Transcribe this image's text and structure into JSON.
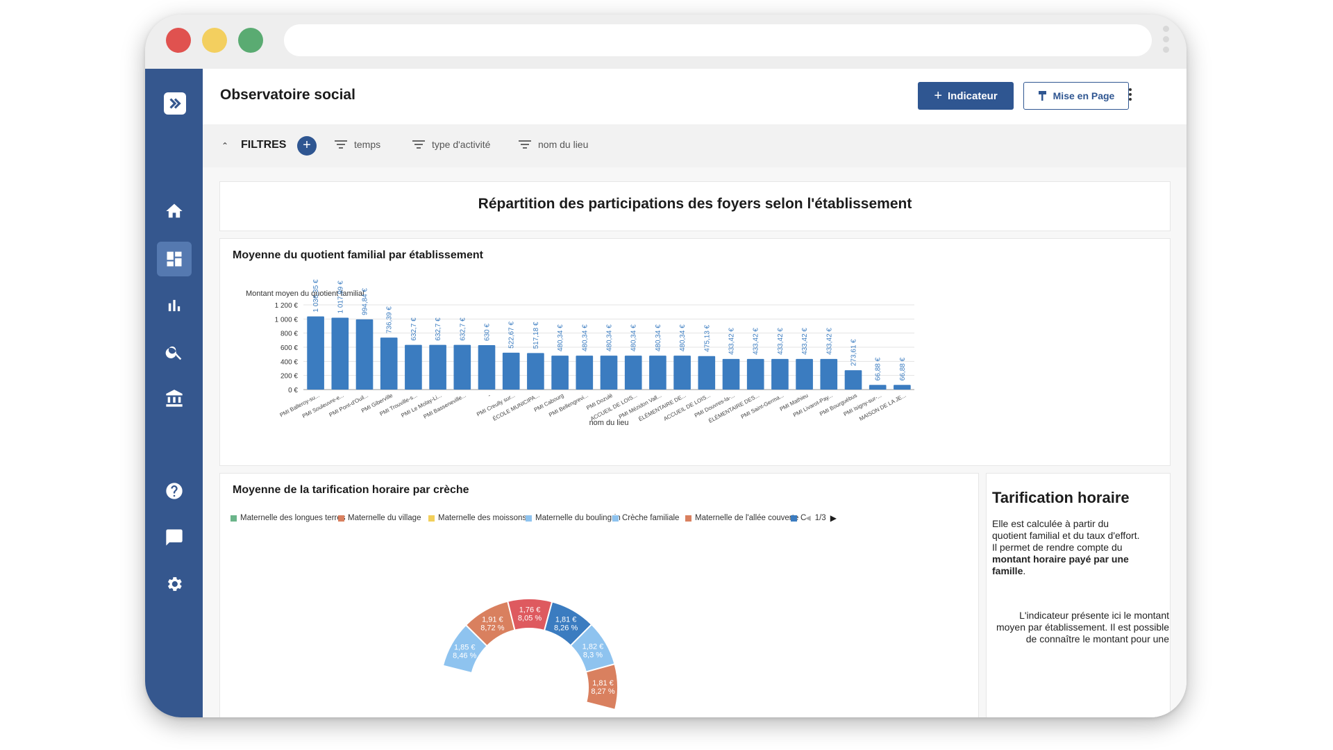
{
  "app": {
    "title": "Observatoire social",
    "add_indicator_label": "Indicateur",
    "layout_label": "Mise en Page"
  },
  "sidebar": {
    "items": [
      {
        "icon": "logo-icon"
      },
      {
        "icon": "home-icon"
      },
      {
        "icon": "dashboard-icon",
        "active": true
      },
      {
        "icon": "bar-chart-icon"
      },
      {
        "icon": "search-icon"
      },
      {
        "icon": "institution-icon"
      },
      {
        "icon": "help-icon"
      },
      {
        "icon": "chat-icon"
      },
      {
        "icon": "settings-icon"
      }
    ]
  },
  "filters": {
    "label": "FILTRES",
    "chips": [
      "temps",
      "type d'activité",
      "nom du lieu"
    ]
  },
  "section": {
    "title": "Répartition des participations des foyers selon l'établissement"
  },
  "bar_card": {
    "title": "Moyenne du quotient familial par établissement"
  },
  "pie_card": {
    "title": "Moyenne de la tarification horaire par crèche",
    "legend": [
      {
        "label": "Maternelle des longues terres",
        "color": "#6bb58a"
      },
      {
        "label": "Maternelle du village",
        "color": "#d9805f"
      },
      {
        "label": "Maternelle des moissons",
        "color": "#f2cf5a"
      },
      {
        "label": "Maternelle du boulingrin",
        "color": "#8ec3ef"
      },
      {
        "label": "Crèche familiale",
        "color": "#8ec3ef"
      },
      {
        "label": "Maternelle de l'allée couverte",
        "color": "#d9805f"
      },
      {
        "label": "C",
        "color": "#3b7cc0"
      }
    ],
    "legend_page": "1/3"
  },
  "info_card": {
    "title": "Tarification horaire",
    "p1_text": "Elle est calculée à partir du quotient familial et du taux d'effort. Il permet de rendre compte du ",
    "p1_bold": "montant horaire payé par une famille",
    "p1_end": ".",
    "p2": "L'indicateur présente ici le montant moyen par établissement. Il est possible de connaître le montant pour une"
  },
  "chart_data": [
    {
      "type": "bar",
      "title": "Moyenne du quotient familial par établissement",
      "xlabel": "nom du lieu",
      "ylabel": "Montant moyen du quotient familial",
      "ylim": [
        0,
        1200
      ],
      "yticks": [
        "0 €",
        "200 €",
        "400 €",
        "600 €",
        "800 €",
        "1 000 €",
        "1 200 €"
      ],
      "grid": true,
      "categories": [
        "PMI Balleroy-su...",
        "PMI Souleuvre-e...",
        "PMI Pont-d'Ouil...",
        "PMI Giberville",
        "PMI Trouville-s...",
        "PMI Le Molay-Li...",
        "PMI Basseneville...",
        "-",
        "PMI Creully sur...",
        "ÉCOLE MUNICIPA...",
        "PMI Cabourg",
        "PMI Bellengrevi...",
        "PMI Dozulé",
        "ACCUEIL DE LOIS...",
        "PMI Mézidon Vall...",
        "ÉLÉMENTAIRE DE...",
        "ACCUEIL DE LOIS...",
        "PMI Douvres-la-...",
        "ÉLÉMENTAIRE DES...",
        "PMI Saint-Germa...",
        "PMI Mathieu",
        "PMI Livarot-Pay...",
        "PMI Bourguébus",
        "PMI Isigny-sur-...",
        "MAISON DE LA JE..."
      ],
      "values": [
        1036.35,
        1017.99,
        994.84,
        736.39,
        632.7,
        632.7,
        632.7,
        630,
        522.67,
        517.18,
        480.34,
        480.34,
        480.34,
        480.34,
        480.34,
        480.34,
        475.13,
        433.42,
        433.42,
        433.42,
        433.42,
        433.42,
        273.61,
        66.88,
        66.88
      ],
      "value_labels": [
        "1 036,35 €",
        "1 017,99 €",
        "994,84 €",
        "736,39 €",
        "632,7 €",
        "632,7 €",
        "632,7 €",
        "630 €",
        "522,67 €",
        "517,18 €",
        "480,34 €",
        "480,34 €",
        "480,34 €",
        "480,34 €",
        "480,34 €",
        "480,34 €",
        "475,13 €",
        "433,42 €",
        "433,42 €",
        "433,42 €",
        "433,42 €",
        "433,42 €",
        "273,61 €",
        "66,88 €",
        "66,88 €"
      ],
      "color": "#3b7cc0"
    },
    {
      "type": "pie",
      "title": "Moyenne de la tarification horaire par crèche",
      "variant": "donut, partially visible",
      "slices": [
        {
          "value": 1.85,
          "percent": 8.46,
          "label": "1,85 €",
          "pct_label": "8,46 %",
          "color": "#8ec3ef"
        },
        {
          "value": 1.91,
          "percent": 8.72,
          "label": "1,91 €",
          "pct_label": "8,72 %",
          "color": "#d9805f"
        },
        {
          "value": 1.76,
          "percent": 8.05,
          "label": "1,76 €",
          "pct_label": "8,05 %",
          "color": "#de5a5f"
        },
        {
          "value": 1.81,
          "percent": 8.26,
          "label": "1,81 €",
          "pct_label": "8,26 %",
          "color": "#3b7cc0"
        },
        {
          "value": 1.82,
          "percent": 8.3,
          "label": "1,82 €",
          "pct_label": "8,3 %",
          "color": "#8ec3ef"
        },
        {
          "value": 1.81,
          "percent": 8.27,
          "label": "1,81 €",
          "pct_label": "8,27 %",
          "color": "#d9805f"
        }
      ]
    }
  ]
}
